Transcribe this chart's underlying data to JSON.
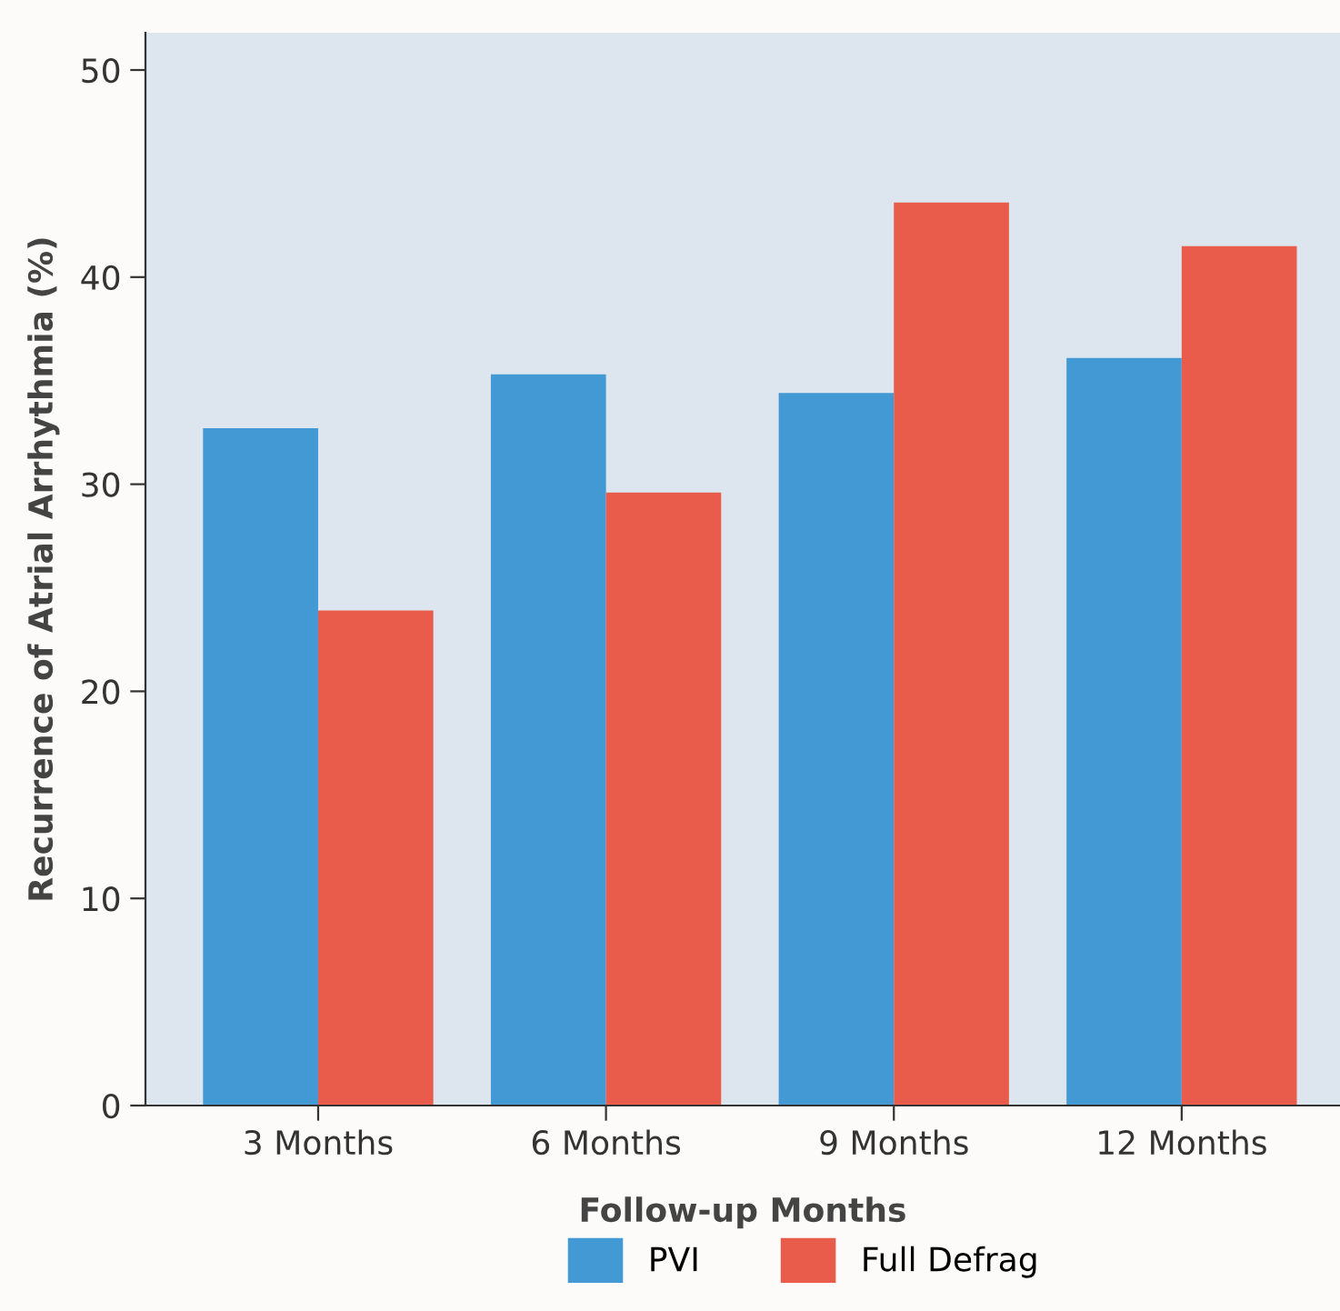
{
  "chart_data": {
    "type": "bar",
    "xlabel": "Follow-up Months",
    "ylabel": "Recurrence of Atrial Arrhythmia (%)",
    "categories": [
      "3 Months",
      "6 Months",
      "9 Months",
      "12 Months"
    ],
    "series": [
      {
        "name": "PVI",
        "color": "#4299d3",
        "values": [
          32.7,
          35.3,
          34.4,
          36.1
        ]
      },
      {
        "name": "Full Defrag",
        "color": "#e95c4b",
        "values": [
          23.9,
          29.6,
          43.6,
          41.5
        ]
      }
    ],
    "ylim": [
      0,
      51.8
    ],
    "yticks": [
      0,
      10,
      20,
      30,
      40,
      50
    ],
    "grid": false,
    "legend": "bottom"
  }
}
